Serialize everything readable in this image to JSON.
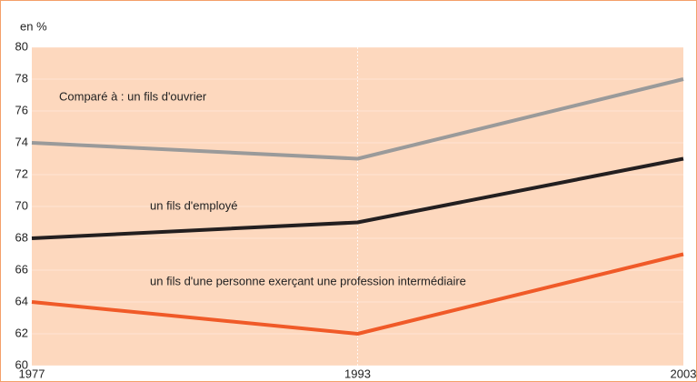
{
  "chart_data": {
    "type": "line",
    "y_label": "en %",
    "categories": [
      "1977",
      "1993",
      "2003"
    ],
    "series": [
      {
        "name": "Comparé à : un fils d'ouvrier",
        "color": "#9a9a9a",
        "values": [
          74,
          73,
          78
        ]
      },
      {
        "name": "un fils d'employé",
        "color": "#231f20",
        "values": [
          68,
          69,
          73
        ]
      },
      {
        "name": "un fils d'une personne exerçant une profession intermédiaire",
        "color": "#f05a28",
        "values": [
          64,
          62,
          67
        ]
      }
    ],
    "ylim": [
      60,
      80
    ],
    "yticks": [
      60,
      62,
      64,
      66,
      68,
      70,
      72,
      74,
      76,
      78,
      80
    ],
    "grid": true,
    "background": "#fdd8be"
  }
}
